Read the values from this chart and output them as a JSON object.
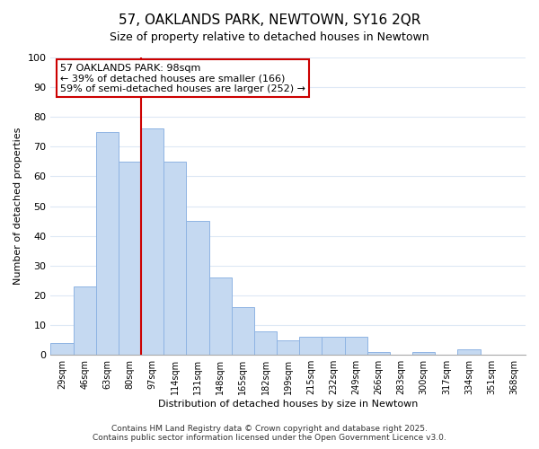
{
  "title": "57, OAKLANDS PARK, NEWTOWN, SY16 2QR",
  "subtitle": "Size of property relative to detached houses in Newtown",
  "xlabel": "Distribution of detached houses by size in Newtown",
  "ylabel": "Number of detached properties",
  "bar_labels": [
    "29sqm",
    "46sqm",
    "63sqm",
    "80sqm",
    "97sqm",
    "114sqm",
    "131sqm",
    "148sqm",
    "165sqm",
    "182sqm",
    "199sqm",
    "215sqm",
    "232sqm",
    "249sqm",
    "266sqm",
    "283sqm",
    "300sqm",
    "317sqm",
    "334sqm",
    "351sqm",
    "368sqm"
  ],
  "bar_values": [
    4,
    23,
    75,
    65,
    76,
    65,
    45,
    26,
    16,
    8,
    5,
    6,
    6,
    6,
    1,
    0,
    1,
    0,
    2,
    0,
    0
  ],
  "bar_color": "#c5d9f1",
  "bar_edge_color": "#8fb4e3",
  "vline_color": "#cc0000",
  "vline_bar_index": 4,
  "annotation_text_line1": "57 OAKLANDS PARK: 98sqm",
  "annotation_text_line2": "← 39% of detached houses are smaller (166)",
  "annotation_text_line3": "59% of semi-detached houses are larger (252) →",
  "ylim": [
    0,
    100
  ],
  "yticks": [
    0,
    10,
    20,
    30,
    40,
    50,
    60,
    70,
    80,
    90,
    100
  ],
  "footer_text": "Contains HM Land Registry data © Crown copyright and database right 2025.\nContains public sector information licensed under the Open Government Licence v3.0.",
  "background_color": "#ffffff",
  "grid_color": "#dde8f5",
  "title_fontsize": 11,
  "subtitle_fontsize": 9,
  "axis_label_fontsize": 8,
  "tick_fontsize": 7,
  "annotation_fontsize": 8,
  "footer_fontsize": 6.5
}
